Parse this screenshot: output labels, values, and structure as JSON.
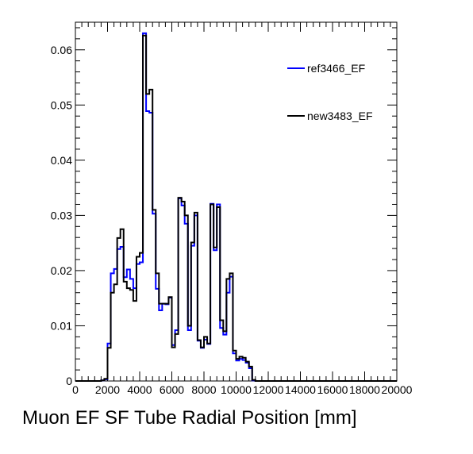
{
  "chart_data": {
    "type": "line",
    "xlabel": "Muon EF SF Tube Radial Position [mm]",
    "xlim": [
      0,
      20000
    ],
    "ylim": [
      0,
      0.065
    ],
    "bin_width": 200,
    "x_ticks": [
      "0",
      "2000",
      "4000",
      "6000",
      "8000",
      "10000",
      "12000",
      "14000",
      "16000",
      "18000",
      "20000"
    ],
    "y_ticks": [
      "0",
      "0.01",
      "0.02",
      "0.03",
      "0.04",
      "0.05",
      "0.06"
    ],
    "legend_position": "top-right",
    "series": [
      {
        "name": "ref3466_EF",
        "color": "#0000ff",
        "bin_starts": [
          1600,
          1800,
          2000,
          2200,
          2400,
          2600,
          2800,
          3000,
          3200,
          3400,
          3600,
          3800,
          4000,
          4200,
          4400,
          4600,
          4800,
          5000,
          5200,
          5400,
          5600,
          5800,
          6000,
          6200,
          6400,
          6600,
          6800,
          7000,
          7200,
          7400,
          7600,
          7800,
          8000,
          8200,
          8400,
          8600,
          8800,
          9000,
          9200,
          9400,
          9600,
          9800,
          10000,
          10200,
          10400,
          10600,
          10800,
          11000,
          11200,
          11400,
          11600,
          11800,
          12000,
          12200
        ],
        "values": [
          0.0001,
          0.0003,
          0.0068,
          0.0195,
          0.0203,
          0.0239,
          0.0243,
          0.0188,
          0.0202,
          0.0185,
          0.0168,
          0.0212,
          0.0215,
          0.063,
          0.0489,
          0.0486,
          0.0303,
          0.0167,
          0.0128,
          0.014,
          0.0139,
          0.0151,
          0.0065,
          0.0092,
          0.0331,
          0.0318,
          0.0285,
          0.0092,
          0.0245,
          0.03,
          0.0073,
          0.006,
          0.0075,
          0.0067,
          0.0321,
          0.0237,
          0.032,
          0.0096,
          0.0084,
          0.016,
          0.0189,
          0.005,
          0.0037,
          0.004,
          0.0038,
          0.0033,
          0.0023,
          0.0001,
          0,
          0,
          0,
          0,
          0,
          0
        ]
      },
      {
        "name": "new3483_EF",
        "color": "#000000",
        "bin_starts": [
          1600,
          1800,
          2000,
          2200,
          2400,
          2600,
          2800,
          3000,
          3200,
          3400,
          3600,
          3800,
          4000,
          4200,
          4400,
          4600,
          4800,
          5000,
          5200,
          5400,
          5600,
          5800,
          6000,
          6200,
          6400,
          6600,
          6800,
          7000,
          7200,
          7400,
          7600,
          7800,
          8000,
          8200,
          8400,
          8600,
          8800,
          9000,
          9200,
          9400,
          9600,
          9800,
          10000,
          10200,
          10400,
          10600,
          10800,
          11000,
          11200,
          11400,
          11600,
          11800,
          12000,
          12200
        ],
        "values": [
          0.0001,
          0.0004,
          0.006,
          0.016,
          0.0175,
          0.0259,
          0.0275,
          0.018,
          0.0168,
          0.0165,
          0.0145,
          0.0225,
          0.0232,
          0.0626,
          0.052,
          0.0528,
          0.031,
          0.0195,
          0.014,
          0.014,
          0.014,
          0.0152,
          0.0061,
          0.0085,
          0.0332,
          0.0325,
          0.03,
          0.01,
          0.0251,
          0.0305,
          0.0074,
          0.0061,
          0.008,
          0.0068,
          0.032,
          0.0242,
          0.0315,
          0.011,
          0.009,
          0.0185,
          0.0195,
          0.0055,
          0.004,
          0.0044,
          0.0042,
          0.0035,
          0.0026,
          0.0002,
          0,
          0,
          0,
          0,
          0,
          0
        ]
      }
    ]
  }
}
